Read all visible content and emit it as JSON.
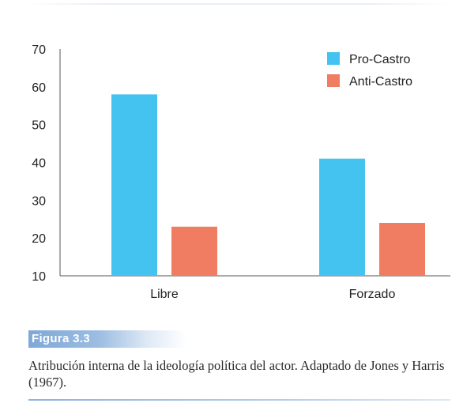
{
  "chart_data": {
    "type": "bar",
    "categories": [
      "Libre",
      "Forzado"
    ],
    "series": [
      {
        "name": "Pro-Castro",
        "values": [
          58,
          41
        ],
        "color": "#45c3f0"
      },
      {
        "name": "Anti-Castro",
        "values": [
          23,
          24
        ],
        "color": "#f07c62"
      }
    ],
    "ylim": [
      10,
      70
    ],
    "yticks": [
      10,
      20,
      30,
      40,
      50,
      60,
      70
    ],
    "title": "",
    "xlabel": "",
    "ylabel": "",
    "legend_position": "top-right",
    "grid": false
  },
  "figure": {
    "label": "Figura 3.3",
    "caption": "Atribución interna de la ideología política del actor. Adaptado de Jones y Harris (1967)."
  }
}
